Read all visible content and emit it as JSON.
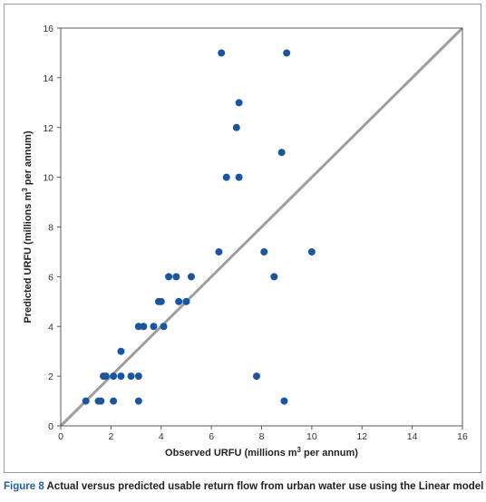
{
  "chart_data": {
    "type": "scatter",
    "xlabel_main": "Observed URFU (millions m",
    "xlabel_sup": "3",
    "xlabel_tail": " per annum)",
    "ylabel_main": "Predicted URFU (millions m",
    "ylabel_sup": "3",
    "ylabel_tail": " per annum)",
    "xlim": [
      0,
      16
    ],
    "ylim": [
      0,
      16
    ],
    "x_ticks": [
      "0",
      "2",
      "4",
      "6",
      "8",
      "10",
      "12",
      "14",
      "16"
    ],
    "y_ticks": [
      "0",
      "2",
      "4",
      "6",
      "8",
      "10",
      "12",
      "14",
      "16"
    ],
    "grid": false,
    "reference_line": {
      "from": [
        0,
        0
      ],
      "to": [
        16,
        16
      ],
      "color": "#9e9e9e"
    },
    "marker_color": "#1a56a0",
    "points": [
      {
        "x": 1.0,
        "y": 1
      },
      {
        "x": 1.5,
        "y": 1
      },
      {
        "x": 1.6,
        "y": 1
      },
      {
        "x": 1.7,
        "y": 2
      },
      {
        "x": 1.8,
        "y": 2
      },
      {
        "x": 2.1,
        "y": 1
      },
      {
        "x": 2.1,
        "y": 2
      },
      {
        "x": 2.4,
        "y": 2
      },
      {
        "x": 2.4,
        "y": 3
      },
      {
        "x": 2.8,
        "y": 2
      },
      {
        "x": 3.1,
        "y": 2
      },
      {
        "x": 3.1,
        "y": 1
      },
      {
        "x": 3.1,
        "y": 4
      },
      {
        "x": 3.3,
        "y": 4
      },
      {
        "x": 3.7,
        "y": 4
      },
      {
        "x": 3.9,
        "y": 5
      },
      {
        "x": 4.0,
        "y": 5
      },
      {
        "x": 4.1,
        "y": 4
      },
      {
        "x": 4.3,
        "y": 6
      },
      {
        "x": 4.6,
        "y": 6
      },
      {
        "x": 4.7,
        "y": 5
      },
      {
        "x": 5.0,
        "y": 5
      },
      {
        "x": 5.2,
        "y": 6
      },
      {
        "x": 6.3,
        "y": 7
      },
      {
        "x": 6.4,
        "y": 15
      },
      {
        "x": 6.6,
        "y": 10
      },
      {
        "x": 7.0,
        "y": 12
      },
      {
        "x": 7.1,
        "y": 13
      },
      {
        "x": 7.1,
        "y": 10
      },
      {
        "x": 7.8,
        "y": 2
      },
      {
        "x": 8.1,
        "y": 7
      },
      {
        "x": 8.5,
        "y": 6
      },
      {
        "x": 8.8,
        "y": 11
      },
      {
        "x": 8.9,
        "y": 1
      },
      {
        "x": 9.0,
        "y": 15
      },
      {
        "x": 10.0,
        "y": 7
      }
    ]
  },
  "caption": {
    "figure_label": "Figure 8",
    "text": " Actual versus predicted usable return flow from urban water use using the Linear model"
  }
}
